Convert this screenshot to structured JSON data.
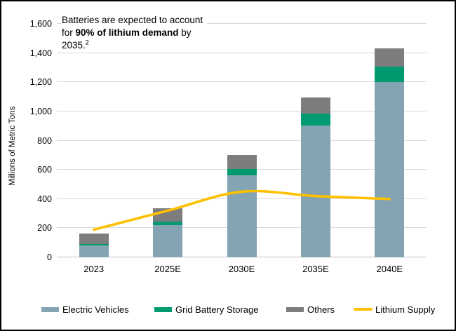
{
  "annotation": {
    "segments": [
      {
        "text": "Batteries are expected to account for ",
        "bold": false,
        "sup": false
      },
      {
        "text": "90% of lithium demand",
        "bold": true,
        "sup": false
      },
      {
        "text": " by 2035.",
        "bold": false,
        "sup": false
      },
      {
        "text": "2",
        "bold": false,
        "sup": true
      }
    ]
  },
  "chart_data": {
    "type": "bar",
    "subtype": "stacked-bar-with-line",
    "categories": [
      "2023",
      "2025E",
      "2030E",
      "2035E",
      "2040E"
    ],
    "series": [
      {
        "name": "Electric Vehicles",
        "kind": "bar",
        "color": "#84a4b4",
        "values": [
          80,
          220,
          560,
          905,
          1200
        ]
      },
      {
        "name": "Grid Battery Storage",
        "kind": "bar",
        "color": "#009a70",
        "values": [
          10,
          25,
          45,
          80,
          105
        ]
      },
      {
        "name": "Others",
        "kind": "bar",
        "color": "#7d7d7d",
        "values": [
          73,
          90,
          95,
          110,
          125
        ]
      },
      {
        "name": "Lithium Supply",
        "kind": "line",
        "color": "#ffc000",
        "values": [
          190,
          320,
          450,
          420,
          400
        ]
      }
    ],
    "stacked_totals": [
      163,
      335,
      700,
      1095,
      1430
    ],
    "title": "",
    "xlabel": "",
    "ylabel": "Millions of Metric Tons",
    "ylim": [
      0,
      1600
    ],
    "ytick_step": 200,
    "grid": true,
    "legend_position": "bottom",
    "colors": {
      "gridline": "#d9d9d9",
      "axis_line": "#bfbfbf",
      "text": "#000000",
      "background": "#ffffff",
      "frame_border": "#000000"
    }
  },
  "legend": {
    "items": [
      {
        "label": "Electric Vehicles",
        "swatch": "bar",
        "color": "#84a4b4",
        "x": 57
      },
      {
        "label": "Grid Battery Storage",
        "swatch": "bar",
        "color": "#009a70",
        "x": 218
      },
      {
        "label": "Others",
        "swatch": "bar",
        "color": "#7d7d7d",
        "x": 406
      },
      {
        "label": "Lithium Supply",
        "swatch": "line",
        "color": "#ffc000",
        "x": 502
      }
    ]
  }
}
